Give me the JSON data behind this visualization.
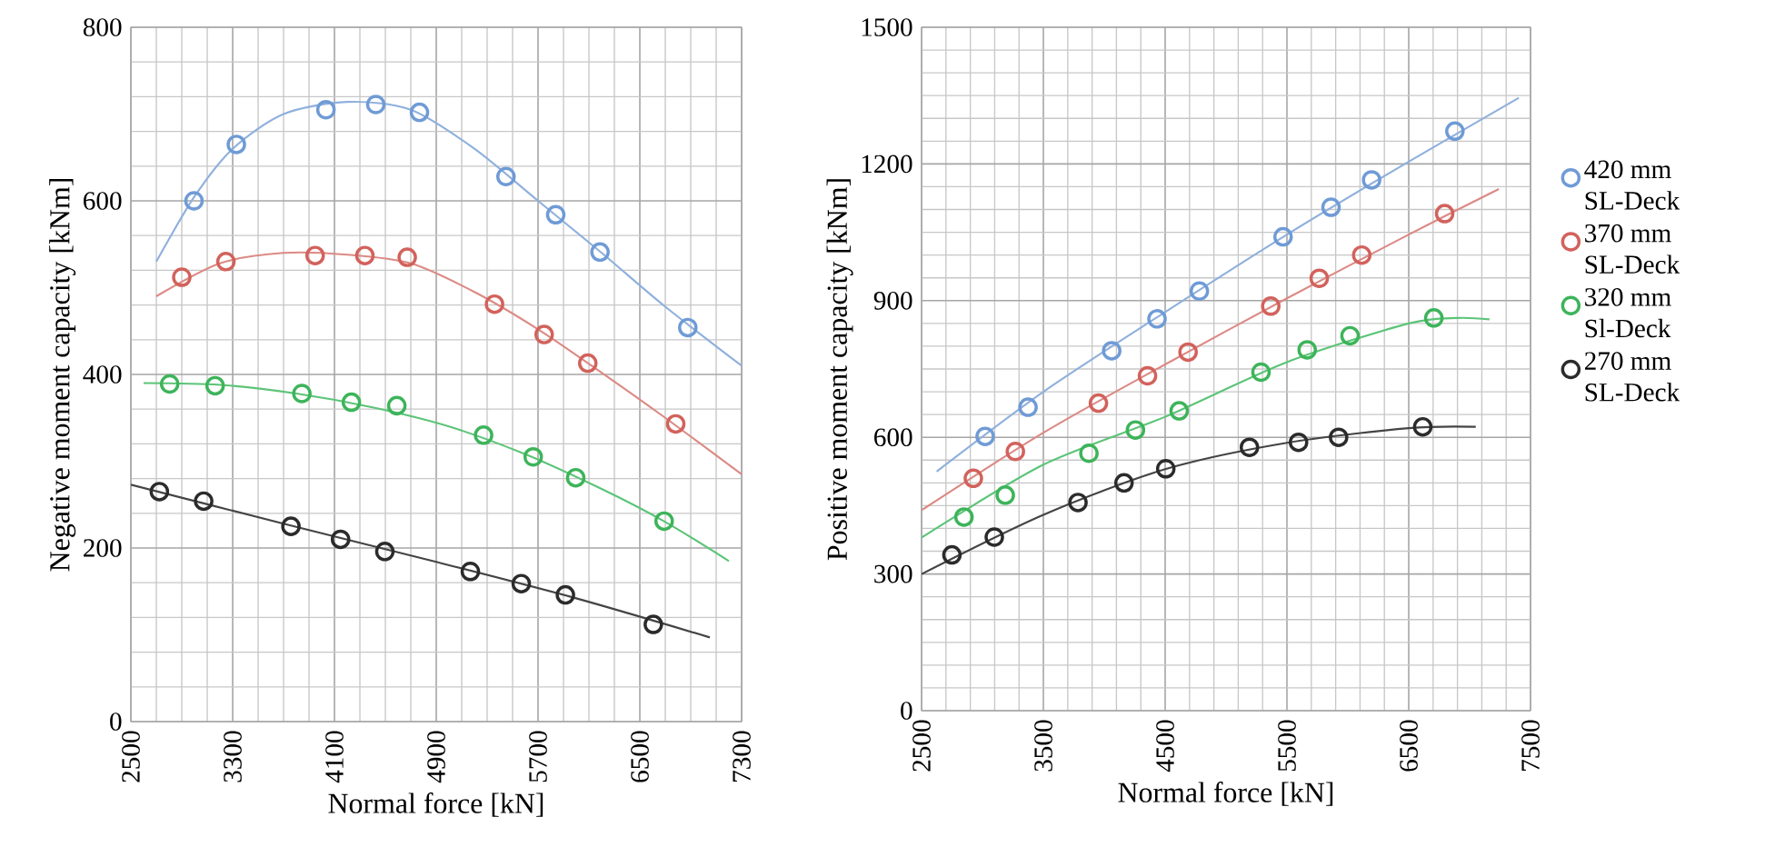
{
  "chart_data": [
    {
      "type": "scatter",
      "xlabel": "Normal force [kN]",
      "ylabel": "Negative moment capacity [kNm]",
      "xlim": [
        2500,
        7300
      ],
      "xticks": [
        2500,
        3300,
        4100,
        4900,
        5700,
        6500,
        7300
      ],
      "ylim": [
        0,
        800
      ],
      "yticks": [
        0,
        200,
        400,
        600,
        800
      ],
      "grid": true,
      "series": [
        {
          "marker": "circle",
          "color": "#6f9bd6",
          "x": [
            2996,
            3329,
            4033,
            4425,
            4768,
            5448,
            5839,
            6187,
            6877
          ],
          "values": [
            600,
            665,
            705,
            711,
            702,
            628,
            584,
            541,
            454
          ]
        },
        {
          "marker": "circle",
          "color": "#d2625c",
          "x": [
            2900,
            3247,
            3948,
            4339,
            4672,
            5358,
            5748,
            6091,
            6782
          ],
          "values": [
            512,
            530,
            537,
            537,
            535,
            481,
            446,
            413,
            343
          ]
        },
        {
          "marker": "circle",
          "color": "#3db45a",
          "x": [
            2805,
            3162,
            3844,
            4233,
            4590,
            5272,
            5662,
            5996,
            6691
          ],
          "values": [
            389,
            387,
            378,
            368,
            364,
            330,
            305,
            281,
            231
          ]
        },
        {
          "marker": "circle",
          "color": "#2b2b2b",
          "x": [
            2724,
            3072,
            3758,
            4148,
            4496,
            5168,
            5568,
            5915,
            6606
          ],
          "values": [
            265,
            254,
            225,
            210,
            196,
            173,
            159,
            146,
            112
          ]
        },
        {
          "type": "line",
          "marker": "none",
          "color": "#8fb0dd",
          "x": [
            2700,
            3000,
            3300,
            3700,
            4200,
            4700,
            5200,
            5700,
            6200,
            6700,
            7300
          ],
          "values": [
            530,
            605,
            660,
            700,
            714,
            705,
            660,
            600,
            540,
            478,
            410
          ]
        },
        {
          "type": "line",
          "marker": "none",
          "color": "#dc8a85",
          "x": [
            2700,
            3200,
            3700,
            4200,
            4700,
            5200,
            5700,
            6200,
            6700,
            7300
          ],
          "values": [
            490,
            528,
            540,
            538,
            528,
            495,
            452,
            402,
            350,
            285
          ]
        },
        {
          "type": "line",
          "marker": "none",
          "color": "#5cc478",
          "x": [
            2600,
            3200,
            3800,
            4400,
            5000,
            5600,
            6200,
            6700,
            7200
          ],
          "values": [
            390,
            388,
            378,
            362,
            340,
            308,
            268,
            230,
            185
          ]
        },
        {
          "type": "line",
          "marker": "none",
          "color": "#444444",
          "x": [
            2500,
            3700,
            4900,
            6000,
            7050
          ],
          "values": [
            273,
            228,
            184,
            142,
            97
          ]
        }
      ]
    },
    {
      "type": "scatter",
      "xlabel": "Normal force [kN]",
      "ylabel": "Positive moment capacity [kNm]",
      "xlim": [
        2500,
        7500
      ],
      "xticks": [
        2500,
        3500,
        4500,
        5500,
        6500,
        7500
      ],
      "ylim": [
        0,
        1500
      ],
      "yticks": [
        0,
        300,
        600,
        900,
        1200,
        1500
      ],
      "grid": true,
      "legend": "right",
      "series": [
        {
          "marker": "circle",
          "name": "420 mm SL-Deck",
          "color": "#6f9bd6",
          "x": [
            3022,
            3374,
            4061,
            4433,
            4781,
            5468,
            5862,
            6195,
            6879
          ],
          "values": [
            602,
            666,
            790,
            860,
            921,
            1040,
            1105,
            1165,
            1272
          ]
        },
        {
          "marker": "circle",
          "name": "370 mm SL-Deck",
          "color": "#d2625c",
          "x": [
            2925,
            3270,
            3952,
            4355,
            4688,
            5367,
            5765,
            6114,
            6795
          ],
          "values": [
            510,
            569,
            675,
            735,
            787,
            888,
            949,
            1000,
            1091
          ]
        },
        {
          "marker": "circle",
          "name": "320 mm Sl-Deck",
          "color": "#3db45a",
          "x": [
            2848,
            3187,
            3874,
            4256,
            4615,
            5287,
            5666,
            6018,
            6706
          ],
          "values": [
            425,
            473,
            565,
            616,
            658,
            743,
            792,
            823,
            862
          ]
        },
        {
          "marker": "circle",
          "name": "270 mm SL-Deck",
          "color": "#2b2b2b",
          "x": [
            2749,
            3097,
            3784,
            4162,
            4505,
            5192,
            5595,
            5924,
            6615
          ],
          "values": [
            342,
            381,
            457,
            500,
            531,
            578,
            589,
            600,
            623
          ]
        },
        {
          "type": "line",
          "marker": "none",
          "color": "#8fb0dd",
          "x": [
            2624,
            3500,
            4500,
            5500,
            6500,
            7404
          ],
          "values": [
            525,
            700,
            875,
            1045,
            1205,
            1345
          ]
        },
        {
          "type": "line",
          "marker": "none",
          "color": "#dc8a85",
          "x": [
            2500,
            3500,
            4500,
            5500,
            6500,
            7240
          ],
          "values": [
            440,
            610,
            760,
            905,
            1045,
            1145
          ]
        },
        {
          "type": "line",
          "marker": "none",
          "color": "#5cc478",
          "x": [
            2500,
            3500,
            4500,
            5500,
            6500,
            6900,
            7163
          ],
          "values": [
            380,
            540,
            645,
            765,
            850,
            862,
            859
          ]
        },
        {
          "type": "line",
          "marker": "none",
          "color": "#444444",
          "x": [
            2500,
            3500,
            4500,
            5500,
            6500,
            7050
          ],
          "values": [
            300,
            430,
            530,
            588,
            620,
            623
          ]
        }
      ]
    }
  ]
}
